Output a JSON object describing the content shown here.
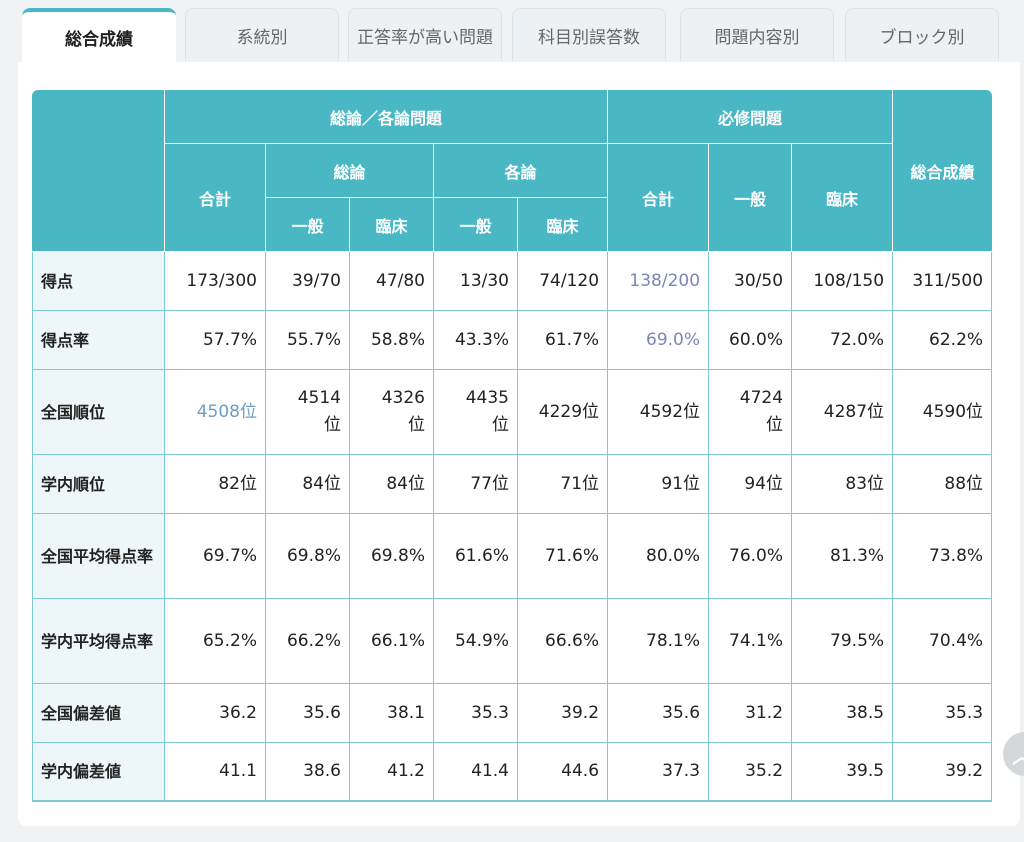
{
  "tabs": [
    {
      "label": "総合成績",
      "active": true
    },
    {
      "label": "系統別",
      "active": false
    },
    {
      "label": "正答率が高い問題",
      "active": false
    },
    {
      "label": "科目別誤答数",
      "active": false
    },
    {
      "label": "問題内容別",
      "active": false
    },
    {
      "label": "ブロック別",
      "active": false
    }
  ],
  "table": {
    "header": {
      "group_general": "総論／各論問題",
      "group_required": "必修問題",
      "overall": "総合成績",
      "total": "合計",
      "soron": "総論",
      "kakuron": "各論",
      "ippan": "一般",
      "rinsho": "臨床",
      "req_total": "合計",
      "req_ippan": "一般",
      "req_rinsho": "臨床"
    },
    "rows": [
      {
        "label": "得点",
        "values": [
          "173/300",
          "39/70",
          "47/80",
          "13/30",
          "74/120",
          "138/200",
          "30/50",
          "108/150",
          "311/500"
        ]
      },
      {
        "label": "得点率",
        "values": [
          "57.7%",
          "55.7%",
          "58.8%",
          "43.3%",
          "61.7%",
          "69.0%",
          "60.0%",
          "72.0%",
          "62.2%"
        ]
      },
      {
        "label": "全国順位",
        "values": [
          "4508位",
          "4514位",
          "4326位",
          "4435位",
          "4229位",
          "4592位",
          "4724位",
          "4287位",
          "4590位"
        ]
      },
      {
        "label": "学内順位",
        "values": [
          "82位",
          "84位",
          "84位",
          "77位",
          "71位",
          "91位",
          "94位",
          "83位",
          "88位"
        ]
      },
      {
        "label": "全国平均得点率",
        "values": [
          "69.7%",
          "69.8%",
          "69.8%",
          "61.6%",
          "71.6%",
          "80.0%",
          "76.0%",
          "81.3%",
          "73.8%"
        ]
      },
      {
        "label": "学内平均得点率",
        "values": [
          "65.2%",
          "66.2%",
          "66.1%",
          "54.9%",
          "66.6%",
          "78.1%",
          "74.1%",
          "79.5%",
          "70.4%"
        ]
      },
      {
        "label": "全国偏差値",
        "values": [
          "36.2",
          "35.6",
          "38.1",
          "35.3",
          "39.2",
          "35.6",
          "31.2",
          "38.5",
          "35.3"
        ]
      },
      {
        "label": "学内偏差値",
        "values": [
          "41.1",
          "38.6",
          "41.2",
          "41.4",
          "44.6",
          "37.3",
          "35.2",
          "39.5",
          "39.2"
        ]
      }
    ]
  },
  "colors": {
    "header_teal": "#4ab7c4",
    "row_head_bg": "#edf6f8",
    "link_blue": "#6a9ec9",
    "link_purple": "#7b86b8"
  },
  "scroll_button": {
    "icon": "chevron-up-icon"
  }
}
